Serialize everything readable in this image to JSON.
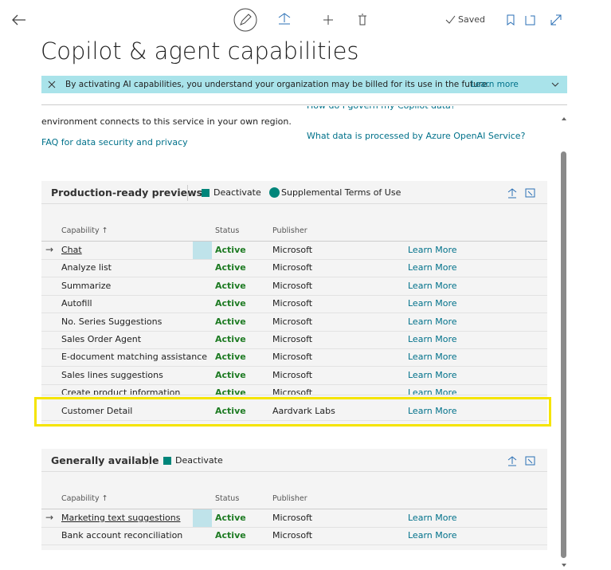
{
  "toolbar": {
    "saved": "Saved"
  },
  "title": "Copilot & agent capabilities",
  "banner": {
    "text": "By activating AI capabilities, you understand your organization may be billed for its use in the future.",
    "link": "Learn more"
  },
  "intro": {
    "left_text": "environment connects to this service in your own region.",
    "left_link": "FAQ for data security and privacy",
    "right_link_1": "How do I govern my Copilot data?",
    "right_link_2": "What data is processed by Azure OpenAI Service?"
  },
  "sections": [
    {
      "title": "Production-ready previews",
      "actions": [
        "Deactivate",
        "Supplemental Terms of Use"
      ],
      "columns": [
        "Capability ↑",
        "Status",
        "Publisher"
      ],
      "rows": [
        {
          "capability": "Chat",
          "status": "Active",
          "publisher": "Microsoft",
          "link": "Learn More"
        },
        {
          "capability": "Analyze list",
          "status": "Active",
          "publisher": "Microsoft",
          "link": "Learn More"
        },
        {
          "capability": "Summarize",
          "status": "Active",
          "publisher": "Microsoft",
          "link": "Learn More"
        },
        {
          "capability": "Autofill",
          "status": "Active",
          "publisher": "Microsoft",
          "link": "Learn More"
        },
        {
          "capability": "No. Series Suggestions",
          "status": "Active",
          "publisher": "Microsoft",
          "link": "Learn More"
        },
        {
          "capability": "Sales Order Agent",
          "status": "Active",
          "publisher": "Microsoft",
          "link": "Learn More"
        },
        {
          "capability": "E-document matching assistance",
          "status": "Active",
          "publisher": "Microsoft",
          "link": "Learn More"
        },
        {
          "capability": "Sales lines suggestions",
          "status": "Active",
          "publisher": "Microsoft",
          "link": "Learn More"
        },
        {
          "capability": "Create product information",
          "status": "Active",
          "publisher": "Microsoft",
          "link": "Learn More"
        },
        {
          "capability": "Customer Detail",
          "status": "Active",
          "publisher": "Aardvark Labs",
          "link": "Learn More"
        }
      ]
    },
    {
      "title": "Generally available",
      "actions": [
        "Deactivate"
      ],
      "columns": [
        "Capability ↑",
        "Status",
        "Publisher"
      ],
      "rows": [
        {
          "capability": "Marketing text suggestions",
          "status": "Active",
          "publisher": "Microsoft",
          "link": "Learn More"
        },
        {
          "capability": "Bank account reconciliation",
          "status": "Active",
          "publisher": "Microsoft",
          "link": "Learn More"
        }
      ]
    }
  ]
}
